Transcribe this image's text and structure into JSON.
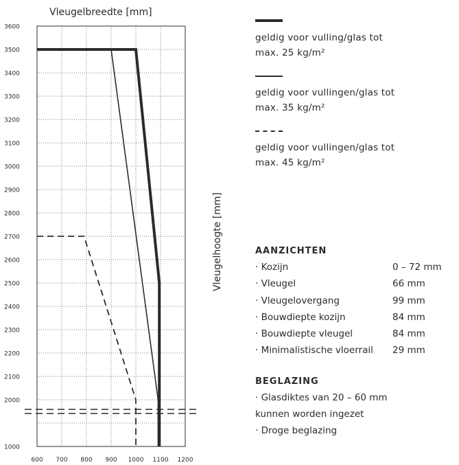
{
  "chart_data": {
    "type": "line",
    "xlabel": "Vleugelbreedte [mm]",
    "ylabel": "Vleugelhoogte [mm]",
    "xlim": [
      600,
      1200
    ],
    "ylim": [
      1000,
      3600
    ],
    "x_ticks": [
      600,
      700,
      800,
      900,
      1000,
      1100,
      1200
    ],
    "y_ticks": [
      1000,
      1900,
      2000,
      2100,
      2200,
      2300,
      2400,
      2500,
      2600,
      2700,
      2800,
      2900,
      3000,
      3100,
      3200,
      3300,
      3400,
      3500,
      3600
    ],
    "y_tick_labels": [
      "1000",
      "2000",
      "2100",
      "2200",
      "2300",
      "2400",
      "2500",
      "2600",
      "2700",
      "2800",
      "2900",
      "3000",
      "3100",
      "3200",
      "3300",
      "3400",
      "3500",
      "3600"
    ],
    "grid": true,
    "threshold_line": {
      "y": 1950,
      "style": "double-dashed"
    },
    "series": [
      {
        "style": "thick",
        "points": [
          [
            600,
            3500
          ],
          [
            1000,
            3500
          ],
          [
            1095,
            2500
          ],
          [
            1095,
            1000
          ]
        ]
      },
      {
        "style": "thin",
        "points": [
          [
            900,
            3500
          ],
          [
            1090,
            2000
          ],
          [
            1090,
            1000
          ]
        ]
      },
      {
        "style": "dashed",
        "points": [
          [
            600,
            2700
          ],
          [
            790,
            2700
          ],
          [
            1000,
            2000
          ],
          [
            1000,
            1000
          ]
        ]
      }
    ]
  },
  "legend": [
    {
      "style": "thick",
      "text": "geldig voor vulling/glas tot\nmax. 25 kg/m²"
    },
    {
      "style": "thin",
      "text": "geldig voor vullingen/glas tot\nmax. 35 kg/m²"
    },
    {
      "style": "dashed",
      "text": "geldig voor vullingen/glas tot\nmax. 45 kg/m²"
    }
  ],
  "aanzichten": {
    "title": "AANZICHTEN",
    "rows": [
      {
        "label": "· Kozijn",
        "value": "0 – 72 mm"
      },
      {
        "label": "· Vleugel",
        "value": "66 mm"
      },
      {
        "label": "· Vleugelovergang",
        "value": "99 mm"
      },
      {
        "label": "· Bouwdiepte kozijn",
        "value": "84 mm"
      },
      {
        "label": "· Bouwdiepte vleugel",
        "value": "84 mm"
      },
      {
        "label": "· Minimalistische vloerrail",
        "value": "29 mm"
      }
    ]
  },
  "beglazing": {
    "title": "BEGLAZING",
    "items": [
      "· Glasdiktes van 20 – 60 mm\n  kunnen worden ingezet",
      "· Droge beglazing"
    ]
  }
}
